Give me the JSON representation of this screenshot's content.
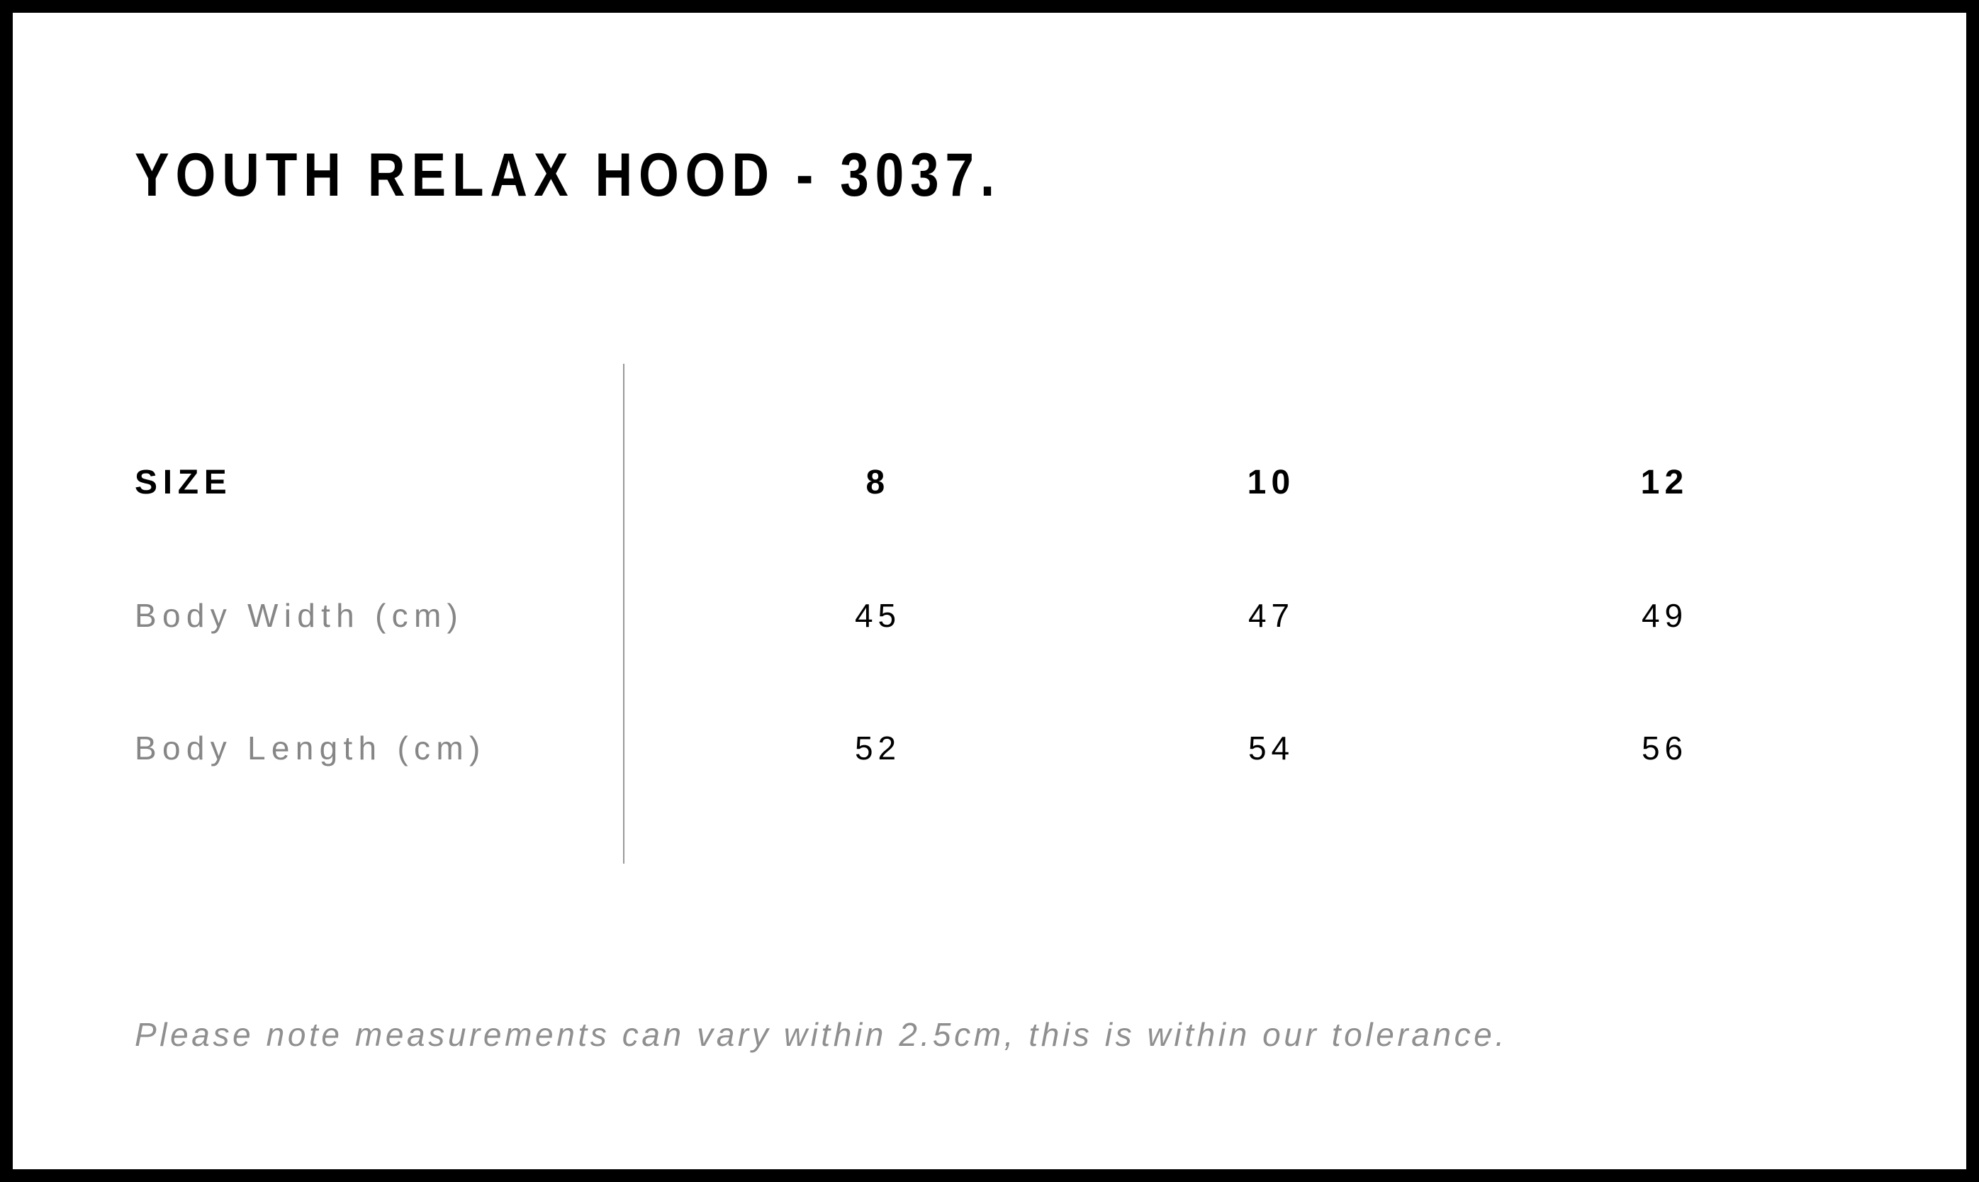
{
  "title": "YOUTH RELAX HOOD - 3037.",
  "size_chart": {
    "header_label": "SIZE",
    "sizes": [
      "8",
      "10",
      "12"
    ],
    "rows": [
      {
        "label": "Body Width (cm)",
        "values": [
          "45",
          "47",
          "49"
        ]
      },
      {
        "label": "Body Length (cm)",
        "values": [
          "52",
          "54",
          "56"
        ]
      }
    ]
  },
  "note": "Please note measurements can vary within 2.5cm, this is within our tolerance.",
  "colors": {
    "frame_border": "#000000",
    "heading_text": "#000000",
    "label_text": "#868686",
    "note_text": "#8f8f8f",
    "divider_line": "#999999",
    "background": "#ffffff"
  },
  "chart_data": {
    "type": "table",
    "title": "YOUTH RELAX HOOD - 3037.",
    "columns": [
      "SIZE",
      "8",
      "10",
      "12"
    ],
    "rows": [
      [
        "Body Width (cm)",
        45,
        47,
        49
      ],
      [
        "Body Length (cm)",
        52,
        54,
        56
      ]
    ],
    "units": "cm",
    "footnote": "Please note measurements can vary within 2.5cm, this is within our tolerance."
  }
}
